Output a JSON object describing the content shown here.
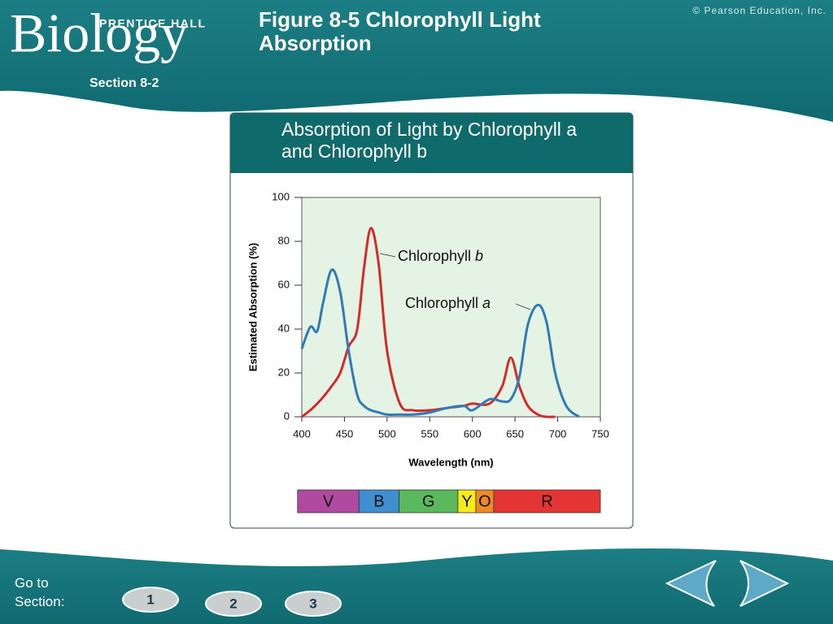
{
  "header": {
    "brand": "Biology",
    "publisher": "PRENTICE HALL",
    "section": "Section 8-2",
    "figure_title": "Figure 8-5 Chlorophyll Light Absorption",
    "copyright": "© Pearson Education, Inc."
  },
  "chart_data": {
    "type": "line",
    "title": "Absorption of Light by Chlorophyll a and Chlorophyll b",
    "xlabel": "Wavelength (nm)",
    "ylabel": "Estimated Absorption (%)",
    "x": [
      400,
      410,
      418,
      425,
      435,
      445,
      455,
      465,
      473,
      481,
      490,
      500,
      515,
      530,
      550,
      570,
      590,
      600,
      620,
      635,
      645,
      655,
      665,
      677,
      687,
      697,
      710,
      725
    ],
    "series": [
      {
        "name": "Chlorophyll b",
        "color": "#d42a2a",
        "values": [
          0,
          3,
          6,
          9,
          14,
          20,
          32,
          40,
          68,
          86,
          70,
          30,
          6,
          3,
          3,
          4,
          5,
          6,
          6,
          14,
          27,
          14,
          5,
          1,
          0,
          0,
          null,
          null
        ]
      },
      {
        "name": "Chlorophyll a",
        "color": "#2f7bb5",
        "values": [
          31,
          41,
          39,
          52,
          67,
          57,
          30,
          10,
          5,
          3,
          2,
          1,
          1,
          1,
          2,
          4,
          5,
          3,
          8,
          7,
          8,
          18,
          42,
          51,
          43,
          20,
          5,
          0
        ]
      }
    ],
    "xlim": [
      400,
      750
    ],
    "ylim": [
      0,
      100
    ],
    "xticks": [
      400,
      450,
      500,
      550,
      600,
      650,
      700,
      750
    ],
    "yticks": [
      0,
      20,
      40,
      60,
      80,
      100
    ],
    "grid": false,
    "plot_background": "#e4f3e4",
    "spectrum": [
      {
        "label": "V",
        "color": "#b04aa0",
        "start": 395,
        "end": 467
      },
      {
        "label": "B",
        "color": "#3f8fd0",
        "start": 467,
        "end": 514
      },
      {
        "label": "G",
        "color": "#5cb85c",
        "start": 514,
        "end": 583
      },
      {
        "label": "Y",
        "color": "#f5ea1a",
        "start": 583,
        "end": 604
      },
      {
        "label": "O",
        "color": "#ea8a2a",
        "start": 604,
        "end": 625
      },
      {
        "label": "R",
        "color": "#e53434",
        "start": 625,
        "end": 750
      }
    ]
  },
  "navigation": {
    "label": "Go to Section:",
    "buttons": [
      "1",
      "2",
      "3"
    ]
  }
}
